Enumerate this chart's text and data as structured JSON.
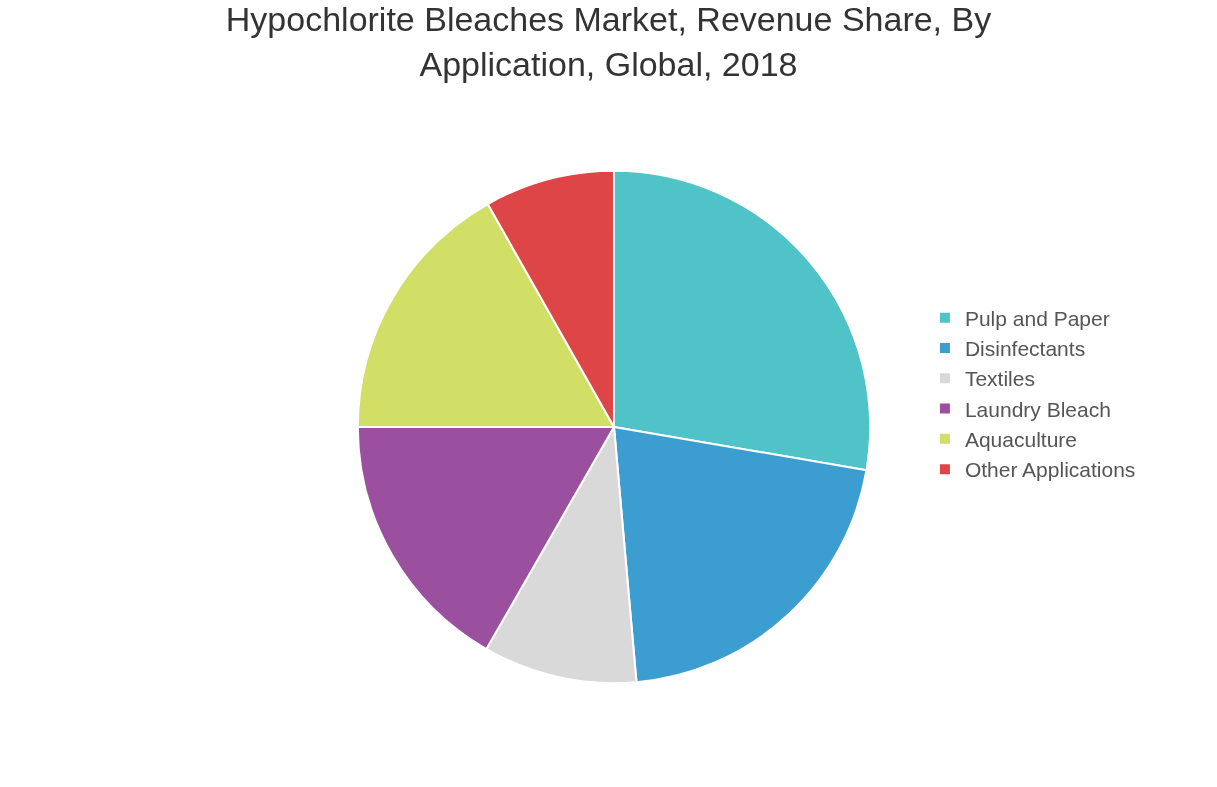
{
  "chart_data": {
    "type": "pie",
    "title": "Hypochlorite Bleaches Market, Revenue Share, By Application, Global, 2018",
    "categories": [
      "Pulp and Paper",
      "Disinfectants",
      "Textiles",
      "Laundry Bleach",
      "Aquaculture",
      "Other Applications"
    ],
    "values": [
      27.7,
      20.9,
      9.7,
      16.7,
      16.8,
      8.2
    ],
    "colors": [
      "#4fc3c7",
      "#3b9dd0",
      "#d9d9d9",
      "#9b4f9f",
      "#d1df67",
      "#dd4546"
    ],
    "legend": "right"
  }
}
